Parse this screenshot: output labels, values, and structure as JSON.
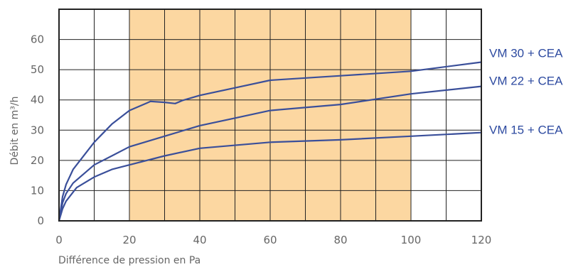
{
  "chart_data": {
    "type": "line",
    "title": "",
    "xlabel": "Différence de pression en Pa",
    "ylabel": "Débit en m³/h",
    "xlim": [
      0,
      120
    ],
    "ylim": [
      0,
      70
    ],
    "x_ticks": [
      "0",
      "20",
      "40",
      "60",
      "80",
      "100",
      "120"
    ],
    "y_ticks": [
      "0",
      "10",
      "20",
      "30",
      "40",
      "50",
      "60"
    ],
    "grid": true,
    "highlight_band": {
      "x_from": 20,
      "x_to": 100,
      "color": "#fcd7a1"
    },
    "line_color": "#3a4f9a",
    "series": [
      {
        "name": "VM 30 + CEA",
        "points": [
          [
            0,
            0
          ],
          [
            1,
            8
          ],
          [
            2,
            12
          ],
          [
            4,
            17
          ],
          [
            8,
            23
          ],
          [
            10,
            26
          ],
          [
            15,
            32
          ],
          [
            20,
            36.5
          ],
          [
            25,
            39
          ],
          [
            26,
            39.5
          ],
          [
            30,
            39.2
          ],
          [
            33,
            38.8
          ],
          [
            35,
            39.8
          ],
          [
            40,
            41.5
          ],
          [
            50,
            44
          ],
          [
            60,
            46.5
          ],
          [
            80,
            48
          ],
          [
            100,
            49.5
          ],
          [
            120,
            52.5
          ]
        ]
      },
      {
        "name": "VM 22 + CEA",
        "points": [
          [
            0,
            0
          ],
          [
            1,
            6
          ],
          [
            2,
            9
          ],
          [
            4,
            12.5
          ],
          [
            10,
            18.5
          ],
          [
            15,
            21.5
          ],
          [
            20,
            24.5
          ],
          [
            30,
            28
          ],
          [
            40,
            31.5
          ],
          [
            50,
            34
          ],
          [
            60,
            36.5
          ],
          [
            80,
            38.5
          ],
          [
            100,
            42
          ],
          [
            120,
            44.5
          ]
        ]
      },
      {
        "name": "VM 15 + CEA",
        "points": [
          [
            0,
            0
          ],
          [
            1,
            4
          ],
          [
            2,
            6.5
          ],
          [
            5,
            11
          ],
          [
            10,
            14.5
          ],
          [
            15,
            17
          ],
          [
            20,
            18.5
          ],
          [
            30,
            21.5
          ],
          [
            40,
            24
          ],
          [
            60,
            26
          ],
          [
            80,
            26.8
          ],
          [
            100,
            28
          ],
          [
            120,
            29.2
          ]
        ]
      }
    ]
  }
}
